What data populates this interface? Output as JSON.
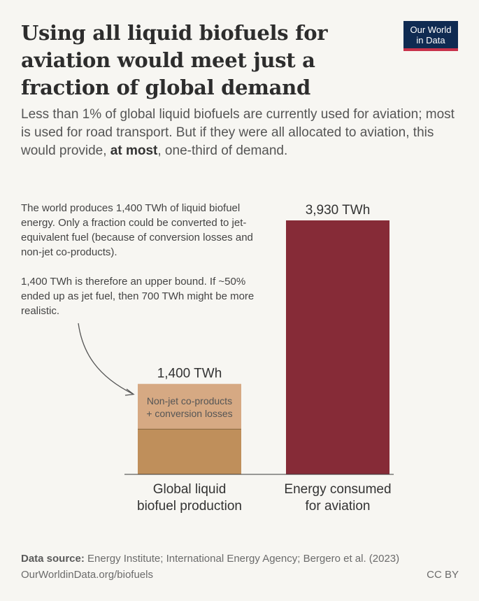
{
  "header": {
    "title": "Using all liquid biofuels for aviation would meet just a fraction of global demand",
    "subtitle_pre": "Less than 1% of global liquid biofuels are currently used for aviation; most is used for road transport. But if they were all allocated to aviation, this would provide, ",
    "subtitle_bold": "at most",
    "subtitle_post": ", one-third of demand."
  },
  "logo": {
    "line1": "Our World",
    "line2": "in Data",
    "bg_color": "#0f2b52",
    "accent_color": "#c8324b"
  },
  "annotation": {
    "paragraph1": "The world produces 1,400 TWh of liquid biofuel energy. Only a fraction could be converted to jet-equivalent fuel (because of conversion losses and non-jet co-products).",
    "paragraph2": "1,400 TWh is therefore an upper bound. If ~50% ended up as jet fuel, then 700 TWh might be more realistic."
  },
  "chart_data": {
    "type": "bar",
    "categories": [
      "Global liquid biofuel production",
      "Energy consumed for aviation"
    ],
    "category_lines": [
      [
        "Global liquid",
        "biofuel production"
      ],
      [
        "Energy consumed",
        "for aviation"
      ]
    ],
    "values": [
      1400,
      3930
    ],
    "value_labels": [
      "1,400 TWh",
      "3,930 TWh"
    ],
    "unit": "TWh",
    "segments": {
      "lower_value": 700,
      "upper_label_lines": [
        "Non-jet co-products",
        "+ conversion losses"
      ]
    },
    "colors": {
      "biofuel_lower": "#bf8f5b",
      "biofuel_upper": "#d6a983",
      "aviation": "#862b37"
    },
    "ylim": [
      0,
      3930
    ]
  },
  "footer": {
    "source_label": "Data source:",
    "source_text": "Energy Institute; International Energy Agency; Bergero et al. (2023)",
    "url": "OurWorldinData.org/biofuels",
    "license": "CC BY"
  }
}
